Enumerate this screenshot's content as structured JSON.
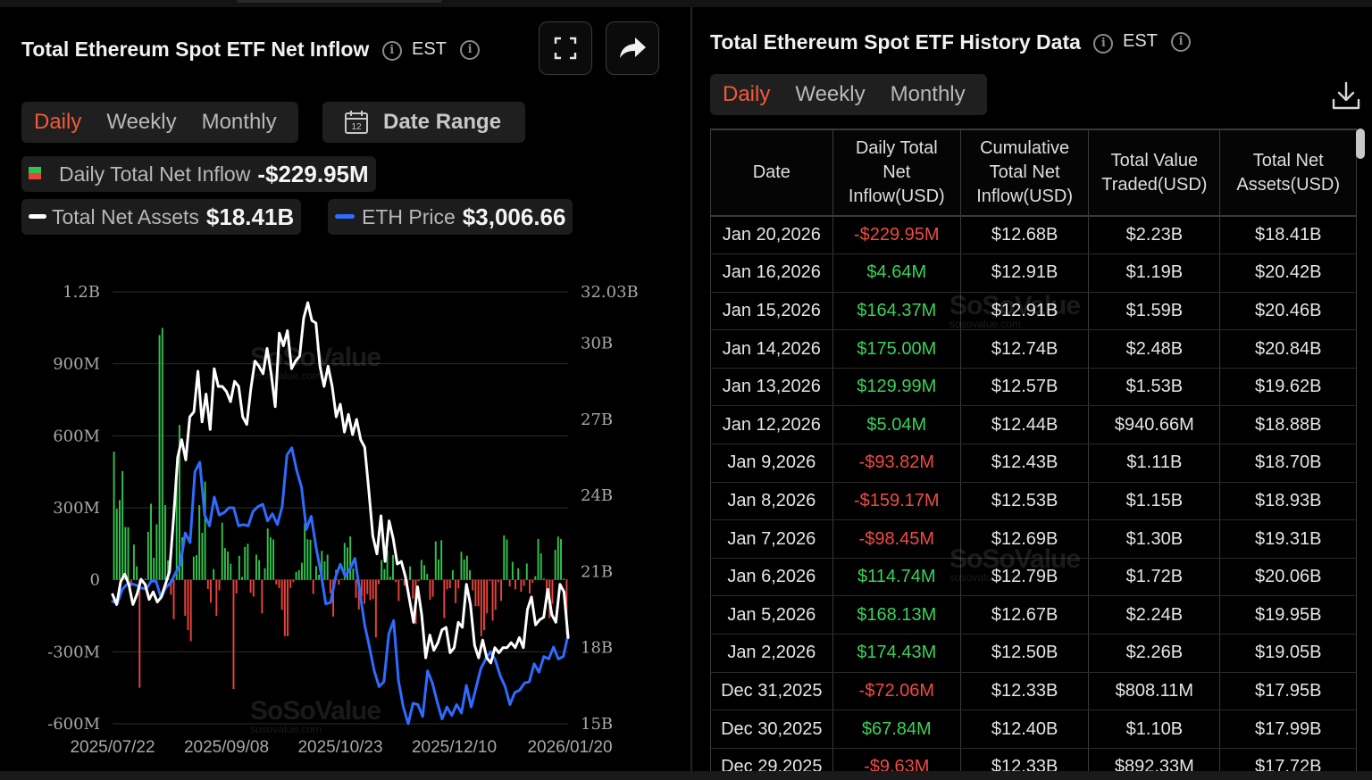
{
  "left_panel": {
    "title": "Total Ethereum Spot ETF Net Inflow",
    "timezone": "EST",
    "tabs": [
      {
        "label": "Daily",
        "active": true
      },
      {
        "label": "Weekly",
        "active": false
      },
      {
        "label": "Monthly",
        "active": false
      }
    ],
    "date_range_label": "Date Range",
    "calendar_day": "12",
    "legend": {
      "inflow_label": "Daily Total Net Inflow",
      "inflow_value": "-$229.95M",
      "assets_label": "Total Net Assets",
      "assets_value": "$18.41B",
      "eth_label": "ETH Price",
      "eth_value": "$3,006.66"
    },
    "watermark": {
      "brand": "SoSoValue",
      "url": "sosovalue.com"
    }
  },
  "right_panel": {
    "title": "Total Ethereum Spot ETF History Data",
    "timezone": "EST",
    "tabs": [
      {
        "label": "Daily",
        "active": true
      },
      {
        "label": "Weekly",
        "active": false
      },
      {
        "label": "Monthly",
        "active": false
      }
    ],
    "columns": [
      "Date",
      "Daily Total Net Inflow(USD)",
      "Cumulative Total Net Inflow(USD)",
      "Total Value Traded(USD)",
      "Total Net Assets(USD)"
    ],
    "rows": [
      {
        "date": "Jan 20,2026",
        "inflow": "-$229.95M",
        "cumulative": "$12.68B",
        "traded": "$2.23B",
        "assets": "$18.41B"
      },
      {
        "date": "Jan 16,2026",
        "inflow": "$4.64M",
        "cumulative": "$12.91B",
        "traded": "$1.19B",
        "assets": "$20.42B"
      },
      {
        "date": "Jan 15,2026",
        "inflow": "$164.37M",
        "cumulative": "$12.91B",
        "traded": "$1.59B",
        "assets": "$20.46B"
      },
      {
        "date": "Jan 14,2026",
        "inflow": "$175.00M",
        "cumulative": "$12.74B",
        "traded": "$2.48B",
        "assets": "$20.84B"
      },
      {
        "date": "Jan 13,2026",
        "inflow": "$129.99M",
        "cumulative": "$12.57B",
        "traded": "$1.53B",
        "assets": "$19.62B"
      },
      {
        "date": "Jan 12,2026",
        "inflow": "$5.04M",
        "cumulative": "$12.44B",
        "traded": "$940.66M",
        "assets": "$18.88B"
      },
      {
        "date": "Jan 9,2026",
        "inflow": "-$93.82M",
        "cumulative": "$12.43B",
        "traded": "$1.11B",
        "assets": "$18.70B"
      },
      {
        "date": "Jan 8,2026",
        "inflow": "-$159.17M",
        "cumulative": "$12.53B",
        "traded": "$1.15B",
        "assets": "$18.93B"
      },
      {
        "date": "Jan 7,2026",
        "inflow": "-$98.45M",
        "cumulative": "$12.69B",
        "traded": "$1.30B",
        "assets": "$19.31B"
      },
      {
        "date": "Jan 6,2026",
        "inflow": "$114.74M",
        "cumulative": "$12.79B",
        "traded": "$1.72B",
        "assets": "$20.06B"
      },
      {
        "date": "Jan 5,2026",
        "inflow": "$168.13M",
        "cumulative": "$12.67B",
        "traded": "$2.24B",
        "assets": "$19.95B"
      },
      {
        "date": "Jan 2,2026",
        "inflow": "$174.43M",
        "cumulative": "$12.50B",
        "traded": "$2.26B",
        "assets": "$19.05B"
      },
      {
        "date": "Dec 31,2025",
        "inflow": "-$72.06M",
        "cumulative": "$12.33B",
        "traded": "$808.11M",
        "assets": "$17.95B"
      },
      {
        "date": "Dec 30,2025",
        "inflow": "$67.84M",
        "cumulative": "$12.40B",
        "traded": "$1.10B",
        "assets": "$17.99B"
      },
      {
        "date": "Dec 29,2025",
        "inflow": "-$9.63M",
        "cumulative": "$12.33B",
        "traded": "$892.33M",
        "assets": "$17.72B"
      }
    ]
  },
  "colors": {
    "active_tab": "#f4593a",
    "inflow_positive": "#33c24d",
    "inflow_negative": "#e8443d",
    "eth_line": "#2f6bff",
    "assets_line": "#ffffff"
  },
  "chart_data": {
    "type": "bar",
    "left_axis": {
      "ticks": [
        "1.2B",
        "900M",
        "600M",
        "300M",
        "0",
        "-300M",
        "-600M"
      ],
      "range": [
        -600,
        1200
      ],
      "unit": "USD millions"
    },
    "right_axis": {
      "ticks": [
        "32.03B",
        "30B",
        "27B",
        "24B",
        "21B",
        "18B",
        "15B"
      ],
      "range": [
        15,
        32.03
      ],
      "unit": "USD billions"
    },
    "x_ticks": [
      "2025/07/22",
      "2025/09/08",
      "2025/10/23",
      "2025/12/10",
      "2026/01/20"
    ],
    "grid": true,
    "series": [
      {
        "name": "Daily Total Net Inflow",
        "kind": "bar",
        "axis": "left",
        "values": [
          534,
          296,
          332,
          453,
          220,
          219,
          -27,
          147,
          56,
          -450,
          -15,
          4,
          200,
          317,
          92,
          231,
          1020,
          1050,
          311,
          81,
          -62,
          -164,
          455,
          645,
          177,
          -150,
          -210,
          -256,
          97,
          103,
          311,
          196,
          409,
          -38,
          -95,
          45,
          -150,
          -44,
          238,
          132,
          118,
          67,
          -455,
          -57,
          100,
          12,
          137,
          150,
          -54,
          -70,
          105,
          82,
          -140,
          48,
          214,
          177,
          168,
          -20,
          -35,
          -125,
          -235,
          -235,
          -34,
          -10,
          33,
          40,
          71,
          235,
          169,
          167,
          -59,
          57,
          21,
          121,
          77,
          105,
          -56,
          -153,
          41,
          -20,
          4,
          154,
          135,
          181,
          47,
          -75,
          -124,
          -70,
          -100,
          -60,
          -85,
          -80,
          -240,
          -18,
          82,
          45,
          122,
          13,
          103,
          -10,
          -88,
          3,
          -25,
          -15,
          56,
          -79,
          -185,
          -5,
          83,
          61,
          25,
          -83,
          -70,
          160,
          85,
          165,
          -160,
          -40,
          -35,
          40,
          -97,
          -36,
          117,
          85,
          100,
          40,
          -44,
          -110,
          -110,
          -235,
          -210,
          -140,
          -5,
          -170,
          -125,
          -10,
          -88,
          185,
          168,
          -28,
          75,
          -40,
          48,
          -50,
          -25,
          68,
          -57,
          -12,
          15,
          170,
          110,
          5,
          -95,
          -160,
          -100,
          125,
          180,
          170,
          5,
          -230
        ]
      },
      {
        "name": "Total Net Assets",
        "kind": "line",
        "axis": "right",
        "values": [
          20.1,
          19.7,
          20.6,
          20.9,
          20.5,
          19.7,
          20.1,
          20.7,
          20.5,
          19.9,
          20.2,
          19.8,
          20.0,
          20.5,
          21.0,
          23.1,
          25.5,
          26.2,
          25.4,
          27.1,
          27.3,
          28.9,
          26.9,
          28.0,
          26.6,
          29.0,
          28.3,
          28.3,
          28.1,
          27.7,
          28.5,
          28.3,
          27.1,
          26.8,
          28.2,
          29.3,
          29.1,
          28.8,
          29.8,
          28.8,
          27.5,
          30.4,
          29.9,
          30.5,
          29.0,
          29.3,
          29.5,
          31.0,
          31.6,
          30.9,
          30.8,
          29.1,
          28.3,
          29.1,
          28.3,
          27.1,
          27.6,
          26.5,
          27.2,
          26.4,
          27.0,
          26.2,
          25.9,
          24.2,
          22.4,
          21.7,
          23.2,
          21.4,
          23.0,
          22.3,
          21.3,
          21.4,
          20.8,
          19.9,
          19.0,
          20.4,
          19.3,
          17.6,
          18.5,
          17.9,
          18.2,
          18.7,
          18.8,
          17.8,
          18.0,
          19.0,
          18.8,
          20.5,
          19.7,
          18.1,
          17.6,
          18.3,
          17.6,
          17.4,
          18.0,
          17.8,
          18.0,
          18.0,
          18.2,
          18.0,
          18.4,
          18.0,
          19.5,
          20.0,
          18.9,
          19.1,
          19.2,
          20.3,
          19.3,
          19.0,
          20.5,
          20.2,
          18.4
        ]
      },
      {
        "name": "ETH Price",
        "kind": "line",
        "axis": "left",
        "values": [
          -90,
          -98,
          -40,
          -18,
          -17,
          -23,
          -35,
          -38,
          -5,
          -7,
          -75,
          -32,
          -12,
          28,
          65,
          195,
          155,
          450,
          490,
          270,
          225,
          345,
          270,
          280,
          300,
          300,
          225,
          230,
          225,
          285,
          305,
          315,
          245,
          275,
          230,
          305,
          520,
          550,
          455,
          385,
          210,
          265,
          135,
          30,
          -100,
          -95,
          10,
          65,
          15,
          45,
          90,
          -45,
          -185,
          -280,
          -380,
          -445,
          -425,
          -225,
          -170,
          -420,
          -530,
          -600,
          -515,
          -520,
          -570,
          -380,
          -430,
          -510,
          -580,
          -530,
          -565,
          -520,
          -555,
          -440,
          -530,
          -450,
          -370,
          -330,
          -300,
          -335,
          -400,
          -445,
          -520,
          -470,
          -460,
          -430,
          -425,
          -350,
          -385,
          -320,
          -330,
          -280,
          -330,
          -320,
          -230
        ]
      }
    ]
  }
}
